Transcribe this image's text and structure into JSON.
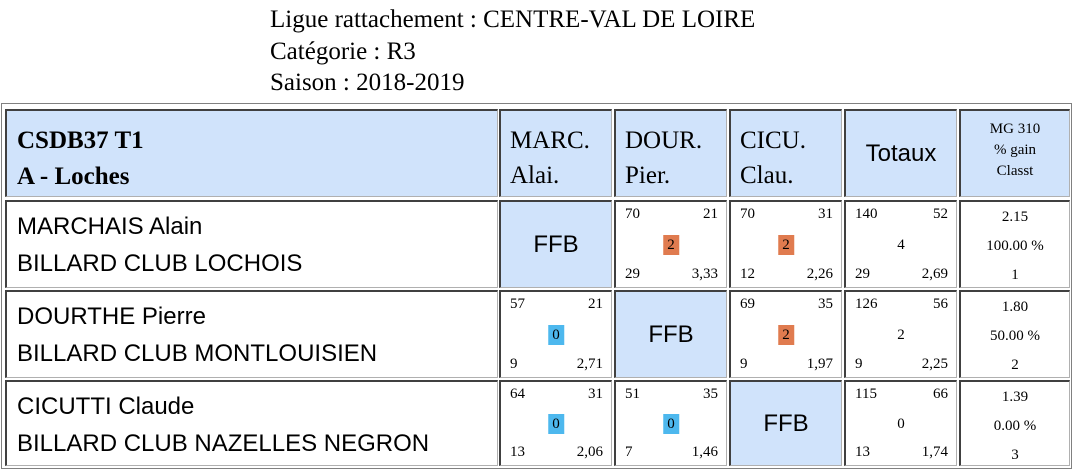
{
  "info": {
    "ligue": "Ligue rattachement : CENTRE-VAL DE LOIRE",
    "categorie": "Catégorie : R3",
    "saison": "Saison : 2018-2019"
  },
  "header": {
    "club_code": "CSDB37 T1",
    "club_name": "A - Loches",
    "players": [
      {
        "line1": "MARC.",
        "line2": "Alai."
      },
      {
        "line1": "DOUR.",
        "line2": "Pier."
      },
      {
        "line1": "CICU.",
        "line2": "Clau."
      }
    ],
    "totaux": "Totaux",
    "mg_line1": "MG 310",
    "mg_line2": "% gain",
    "mg_line3": "Classt"
  },
  "rows": [
    {
      "name": "MARCHAIS Alain",
      "club": "BILLARD CLUB LOCHOIS",
      "matches": [
        {
          "ffb": "FFB"
        },
        {
          "tl": "70",
          "tr": "21",
          "pts": "2",
          "bl": "29",
          "br": "3,33"
        },
        {
          "tl": "70",
          "tr": "31",
          "pts": "2",
          "bl": "12",
          "br": "2,26"
        }
      ],
      "totals": {
        "tl": "140",
        "tr": "52",
        "pts": "4",
        "bl": "29",
        "br": "2,69"
      },
      "summary": {
        "mg": "2.15",
        "pct": "100.00 %",
        "rank": "1"
      }
    },
    {
      "name": "DOURTHE Pierre",
      "club": "BILLARD CLUB MONTLOUISIEN",
      "matches": [
        {
          "tl": "57",
          "tr": "21",
          "pts": "0",
          "bl": "9",
          "br": "2,71"
        },
        {
          "ffb": "FFB"
        },
        {
          "tl": "69",
          "tr": "35",
          "pts": "2",
          "bl": "9",
          "br": "1,97"
        }
      ],
      "totals": {
        "tl": "126",
        "tr": "56",
        "pts": "2",
        "bl": "9",
        "br": "2,25"
      },
      "summary": {
        "mg": "1.80",
        "pct": "50.00 %",
        "rank": "2"
      }
    },
    {
      "name": "CICUTTI Claude",
      "club": "BILLARD CLUB NAZELLES NEGRON",
      "matches": [
        {
          "tl": "64",
          "tr": "31",
          "pts": "0",
          "bl": "13",
          "br": "2,06"
        },
        {
          "tl": "51",
          "tr": "35",
          "pts": "0",
          "bl": "7",
          "br": "1,46"
        },
        {
          "ffb": "FFB"
        }
      ],
      "totals": {
        "tl": "115",
        "tr": "66",
        "pts": "0",
        "bl": "13",
        "br": "1,74"
      },
      "summary": {
        "mg": "1.39",
        "pct": "0.00 %",
        "rank": "3"
      }
    }
  ],
  "colors": {
    "header_bg": "#d0e3fb",
    "win_badge": "#e07b4f",
    "loss_badge": "#4db8ee"
  }
}
